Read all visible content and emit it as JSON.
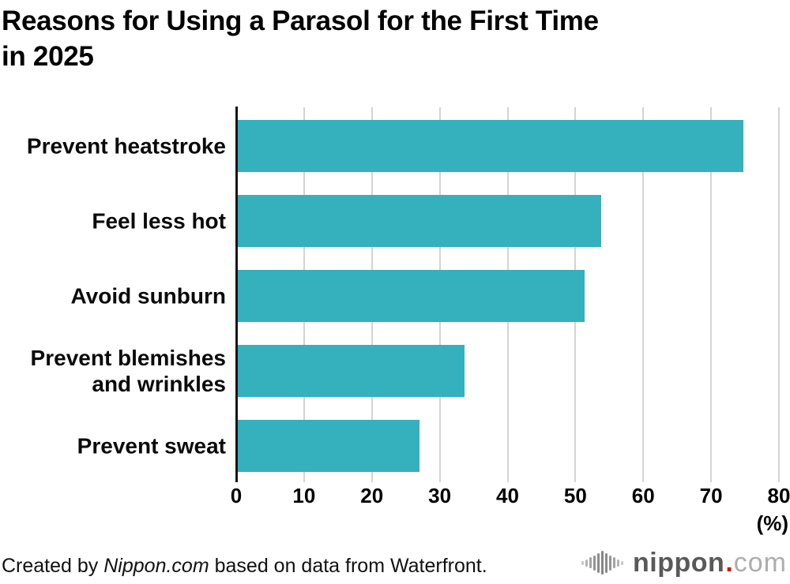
{
  "title": {
    "line1": "Reasons for Using a Parasol for the First Time",
    "line2": "in 2025"
  },
  "chart_data": {
    "type": "bar",
    "orientation": "horizontal",
    "title": "Reasons for Using a Parasol for the First Time in 2025",
    "categories": [
      "Prevent heatstroke",
      "Feel less hot",
      "Avoid sunburn",
      "Prevent blemishes and wrinkles",
      "Prevent sweat"
    ],
    "values": [
      74.8,
      53.8,
      51.3,
      33.7,
      27.0
    ],
    "xlabel": "(%)",
    "ylabel": "",
    "xlim": [
      0,
      80
    ],
    "xticks": [
      0,
      10,
      20,
      30,
      40,
      50,
      60,
      70,
      80
    ],
    "grid": "vertical-gridlines-on",
    "legend": "none",
    "bar_color": "#35b0bd",
    "gridline_color": "#d4d4d4",
    "axis_color": "#141414",
    "unit_label": "(%)"
  },
  "footer": {
    "credit_prefix": "Created by ",
    "credit_source": "Nippon.com",
    "credit_suffix": " based on data from Waterfront.",
    "logo": {
      "name": "nippon.com",
      "icon": "soundwave-bars-icon",
      "text_main": "nippon",
      "text_dot": ".",
      "text_tld": "com",
      "dot_color": "#e60012",
      "main_color": "#595959",
      "tld_color": "#adadad"
    }
  }
}
